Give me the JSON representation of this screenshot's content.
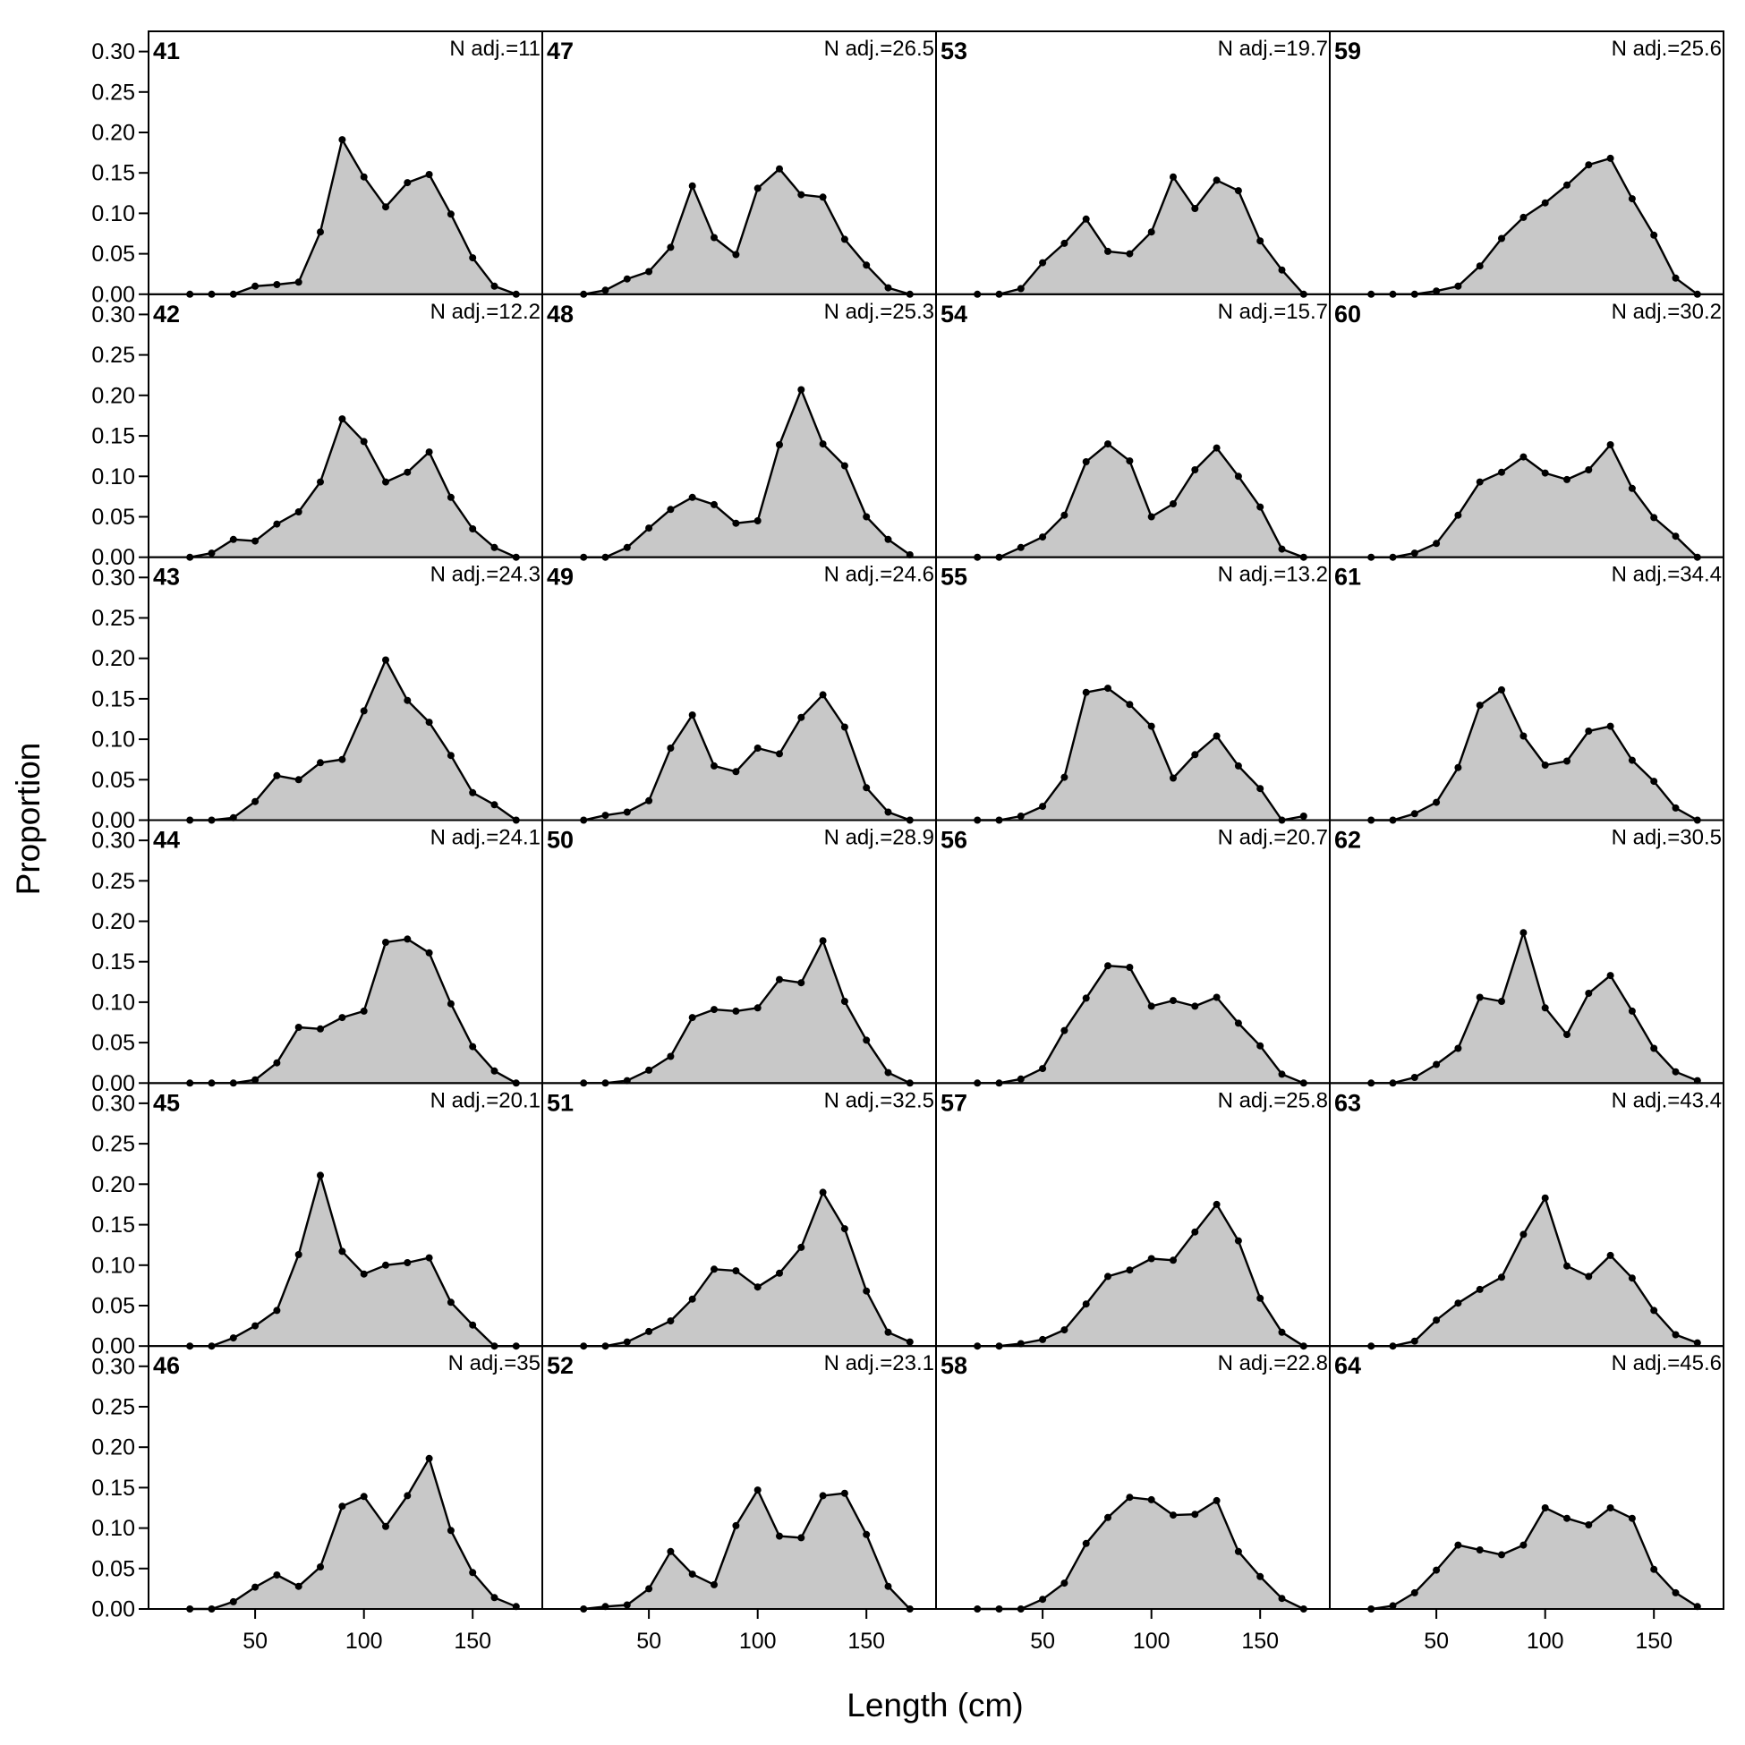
{
  "chart_data": {
    "type": "area",
    "xlabel": "Length (cm)",
    "ylabel": "Proportion",
    "x": [
      20,
      30,
      40,
      50,
      60,
      70,
      80,
      90,
      100,
      110,
      120,
      130,
      140,
      150,
      160,
      170
    ],
    "x_ticks": [
      50,
      100,
      150
    ],
    "y_ticks": [
      "0.00",
      "0.05",
      "0.10",
      "0.15",
      "0.20",
      "0.25",
      "0.30"
    ],
    "ylim": [
      0,
      0.325
    ],
    "xlim": [
      1,
      182
    ],
    "panels": [
      {
        "label": "41",
        "n_text": "N adj.=11",
        "values": [
          0,
          0,
          0,
          0.01,
          0.012,
          0.015,
          0.077,
          0.191,
          0.145,
          0.108,
          0.138,
          0.148,
          0.099,
          0.045,
          0.01,
          0
        ]
      },
      {
        "label": "42",
        "n_text": "N adj.=12.2",
        "values": [
          0,
          0.005,
          0.022,
          0.02,
          0.041,
          0.056,
          0.093,
          0.171,
          0.143,
          0.093,
          0.105,
          0.13,
          0.074,
          0.035,
          0.012,
          0
        ]
      },
      {
        "label": "43",
        "n_text": "N adj.=24.3",
        "values": [
          0,
          0,
          0.003,
          0.023,
          0.055,
          0.05,
          0.071,
          0.075,
          0.135,
          0.198,
          0.148,
          0.121,
          0.08,
          0.034,
          0.019,
          0
        ]
      },
      {
        "label": "44",
        "n_text": "N adj.=24.1",
        "values": [
          0,
          0,
          0,
          0.004,
          0.025,
          0.069,
          0.067,
          0.081,
          0.089,
          0.174,
          0.178,
          0.161,
          0.098,
          0.045,
          0.015,
          0
        ]
      },
      {
        "label": "45",
        "n_text": "N adj.=20.1",
        "values": [
          0,
          0,
          0.01,
          0.025,
          0.044,
          0.113,
          0.211,
          0.117,
          0.089,
          0.1,
          0.103,
          0.109,
          0.054,
          0.026,
          0,
          0
        ]
      },
      {
        "label": "46",
        "n_text": "N adj.=35",
        "values": [
          0,
          0,
          0.009,
          0.027,
          0.042,
          0.028,
          0.052,
          0.127,
          0.139,
          0.102,
          0.14,
          0.186,
          0.097,
          0.045,
          0.014,
          0.003
        ]
      },
      {
        "label": "47",
        "n_text": "N adj.=26.5",
        "values": [
          0,
          0.005,
          0.019,
          0.028,
          0.058,
          0.134,
          0.07,
          0.049,
          0.131,
          0.155,
          0.123,
          0.12,
          0.068,
          0.036,
          0.008,
          0
        ]
      },
      {
        "label": "48",
        "n_text": "N adj.=25.3",
        "values": [
          0,
          0,
          0.012,
          0.036,
          0.059,
          0.074,
          0.065,
          0.042,
          0.045,
          0.139,
          0.207,
          0.14,
          0.113,
          0.05,
          0.022,
          0.003
        ]
      },
      {
        "label": "49",
        "n_text": "N adj.=24.6",
        "values": [
          0,
          0.006,
          0.01,
          0.024,
          0.089,
          0.13,
          0.067,
          0.06,
          0.089,
          0.082,
          0.127,
          0.155,
          0.115,
          0.04,
          0.01,
          0
        ]
      },
      {
        "label": "50",
        "n_text": "N adj.=28.9",
        "values": [
          0,
          0,
          0.003,
          0.016,
          0.033,
          0.081,
          0.091,
          0.089,
          0.093,
          0.128,
          0.124,
          0.176,
          0.101,
          0.053,
          0.013,
          0
        ]
      },
      {
        "label": "51",
        "n_text": "N adj.=32.5",
        "values": [
          0,
          0,
          0.005,
          0.018,
          0.031,
          0.058,
          0.095,
          0.093,
          0.073,
          0.09,
          0.122,
          0.19,
          0.145,
          0.068,
          0.017,
          0.005
        ]
      },
      {
        "label": "52",
        "n_text": "N adj.=23.1",
        "values": [
          0,
          0.003,
          0.005,
          0.025,
          0.071,
          0.043,
          0.03,
          0.103,
          0.147,
          0.09,
          0.088,
          0.14,
          0.143,
          0.092,
          0.028,
          0
        ]
      },
      {
        "label": "53",
        "n_text": "N adj.=19.7",
        "values": [
          0,
          0,
          0.007,
          0.039,
          0.063,
          0.093,
          0.053,
          0.05,
          0.077,
          0.145,
          0.106,
          0.141,
          0.128,
          0.066,
          0.03,
          0
        ]
      },
      {
        "label": "54",
        "n_text": "N adj.=15.7",
        "values": [
          0,
          0,
          0.012,
          0.025,
          0.052,
          0.118,
          0.14,
          0.119,
          0.05,
          0.066,
          0.108,
          0.135,
          0.1,
          0.062,
          0.01,
          0
        ]
      },
      {
        "label": "55",
        "n_text": "N adj.=13.2",
        "values": [
          0,
          0,
          0.005,
          0.017,
          0.053,
          0.158,
          0.163,
          0.143,
          0.116,
          0.052,
          0.081,
          0.104,
          0.067,
          0.039,
          0,
          0.005
        ]
      },
      {
        "label": "56",
        "n_text": "N adj.=20.7",
        "values": [
          0,
          0,
          0.005,
          0.018,
          0.065,
          0.105,
          0.145,
          0.143,
          0.095,
          0.102,
          0.095,
          0.106,
          0.074,
          0.046,
          0.011,
          0
        ]
      },
      {
        "label": "57",
        "n_text": "N adj.=25.8",
        "values": [
          0,
          0,
          0.003,
          0.008,
          0.02,
          0.052,
          0.086,
          0.094,
          0.108,
          0.106,
          0.141,
          0.175,
          0.13,
          0.059,
          0.017,
          0
        ]
      },
      {
        "label": "58",
        "n_text": "N adj.=22.8",
        "values": [
          0,
          0,
          0,
          0.012,
          0.032,
          0.081,
          0.113,
          0.138,
          0.135,
          0.116,
          0.117,
          0.134,
          0.071,
          0.04,
          0.013,
          0
        ]
      },
      {
        "label": "59",
        "n_text": "N adj.=25.6",
        "values": [
          0,
          0,
          0,
          0.004,
          0.01,
          0.035,
          0.069,
          0.095,
          0.113,
          0.135,
          0.16,
          0.168,
          0.118,
          0.073,
          0.02,
          0
        ]
      },
      {
        "label": "60",
        "n_text": "N adj.=30.2",
        "values": [
          0,
          0,
          0.005,
          0.017,
          0.052,
          0.093,
          0.105,
          0.124,
          0.104,
          0.096,
          0.108,
          0.139,
          0.085,
          0.049,
          0.026,
          0
        ]
      },
      {
        "label": "61",
        "n_text": "N adj.=34.4",
        "values": [
          0,
          0,
          0.008,
          0.022,
          0.065,
          0.142,
          0.161,
          0.104,
          0.068,
          0.073,
          0.11,
          0.116,
          0.074,
          0.048,
          0.015,
          0
        ]
      },
      {
        "label": "62",
        "n_text": "N adj.=30.5",
        "values": [
          0,
          0,
          0.007,
          0.023,
          0.043,
          0.106,
          0.101,
          0.186,
          0.093,
          0.06,
          0.111,
          0.133,
          0.089,
          0.043,
          0.014,
          0.003
        ]
      },
      {
        "label": "63",
        "n_text": "N adj.=43.4",
        "values": [
          0,
          0,
          0.006,
          0.032,
          0.053,
          0.07,
          0.085,
          0.138,
          0.183,
          0.099,
          0.086,
          0.112,
          0.084,
          0.044,
          0.014,
          0.004
        ]
      },
      {
        "label": "64",
        "n_text": "N adj.=45.6",
        "values": [
          0,
          0.004,
          0.02,
          0.048,
          0.079,
          0.073,
          0.067,
          0.079,
          0.125,
          0.112,
          0.104,
          0.125,
          0.112,
          0.049,
          0.02,
          0.003
        ]
      }
    ]
  }
}
